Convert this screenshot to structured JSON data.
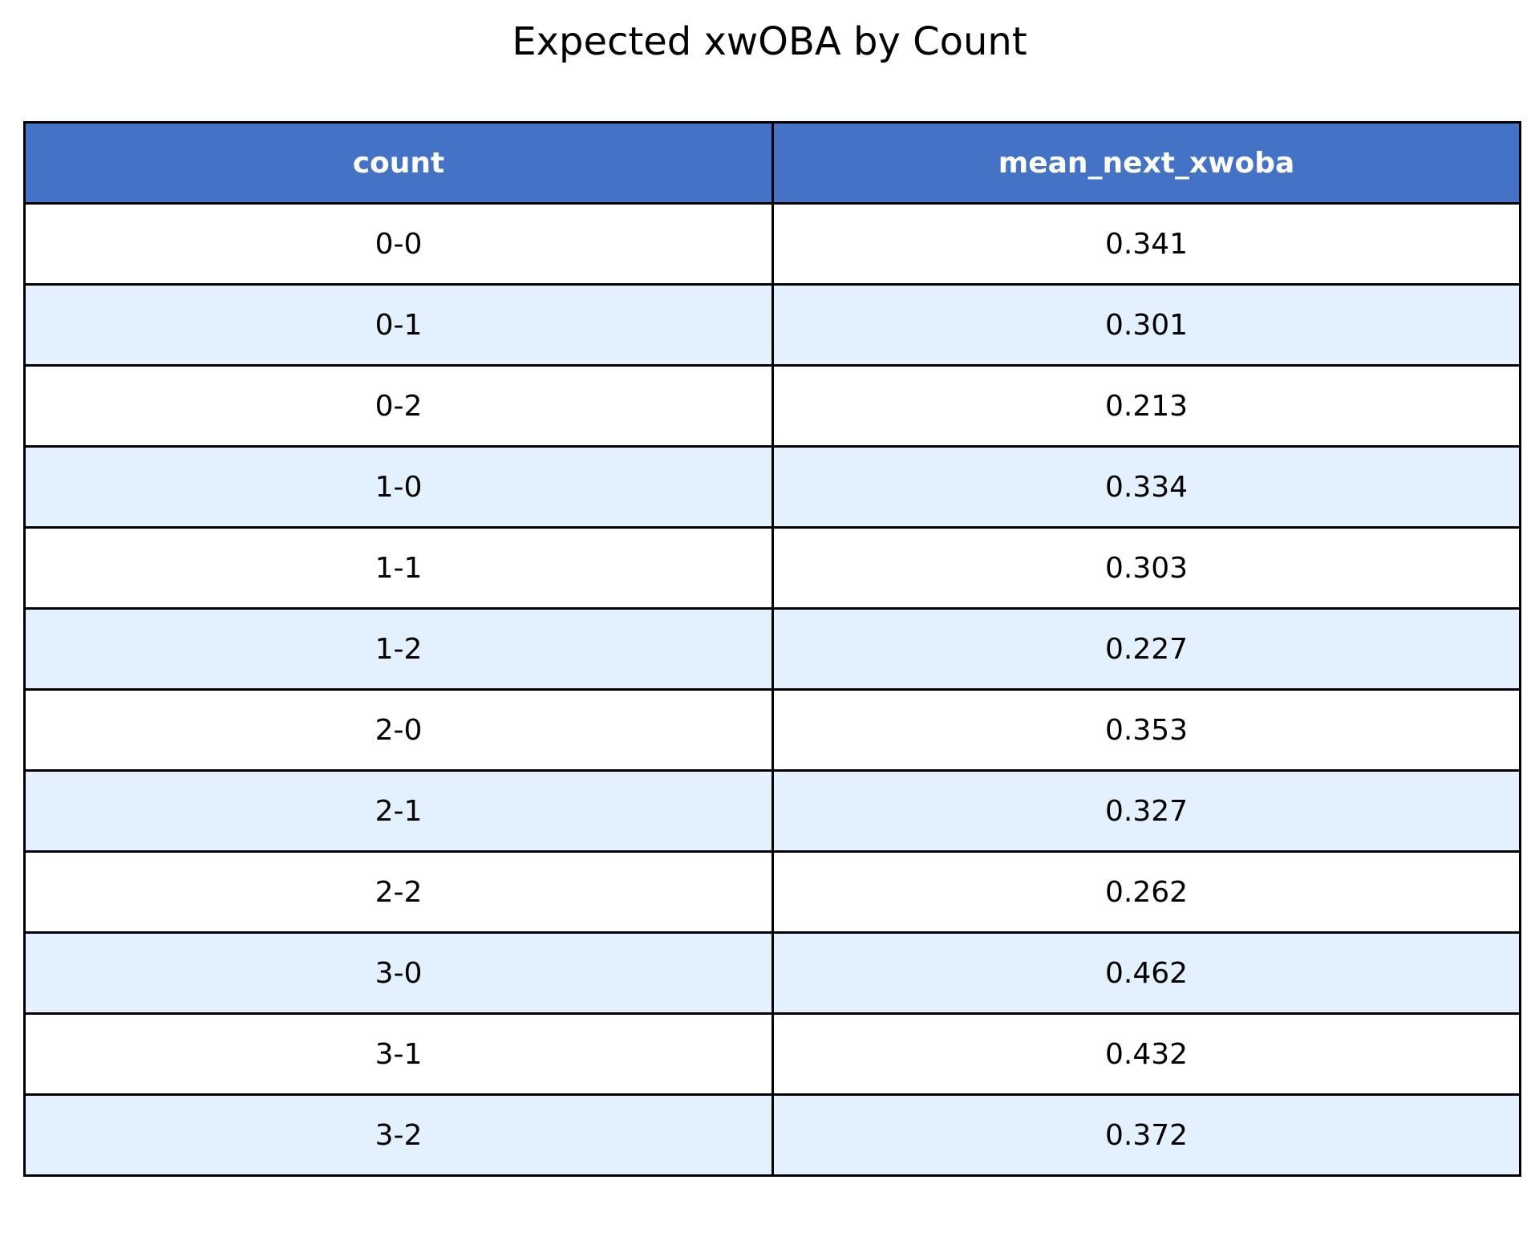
{
  "colors": {
    "header_bg": "#4472c4",
    "header_text": "#ffffff",
    "row_even_bg": "#ffffff",
    "row_odd_bg": "#e3f0fe",
    "border": "#000000"
  },
  "chart_data": {
    "type": "table",
    "title": "Expected xwOBA by Count",
    "columns": [
      "count",
      "mean_next_xwoba"
    ],
    "rows": [
      [
        "0-0",
        "0.341"
      ],
      [
        "0-1",
        "0.301"
      ],
      [
        "0-2",
        "0.213"
      ],
      [
        "1-0",
        "0.334"
      ],
      [
        "1-1",
        "0.303"
      ],
      [
        "1-2",
        "0.227"
      ],
      [
        "2-0",
        "0.353"
      ],
      [
        "2-1",
        "0.327"
      ],
      [
        "2-2",
        "0.262"
      ],
      [
        "3-0",
        "0.462"
      ],
      [
        "3-1",
        "0.432"
      ],
      [
        "3-2",
        "0.372"
      ]
    ]
  }
}
